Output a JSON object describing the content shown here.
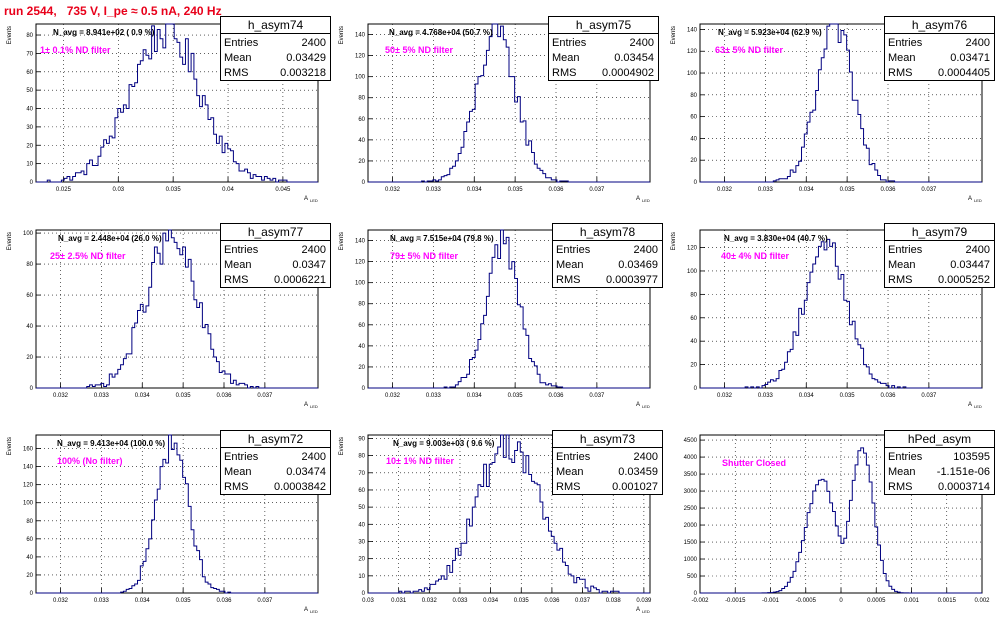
{
  "page_title": "run 2544,   735 V, I_pe ≈ 0.5 nA, 240 Hz",
  "hist_color": "#000080",
  "filter_color": "#ff00ff",
  "title_color": "#e8001a",
  "chart_data": [
    {
      "type": "bar",
      "name": "h_asym74",
      "ylabel": "Events",
      "xlabel": "A",
      "xlabel_sub": "LED",
      "xlim": [
        0.0225,
        0.0482
      ],
      "ylim": [
        0,
        86
      ],
      "xticks": [
        "0.025",
        "0.03",
        "0.035",
        "0.04",
        "0.045"
      ],
      "xtick_values": [
        0.025,
        0.03,
        0.035,
        0.04,
        0.045
      ],
      "yticks": [
        "0",
        "10",
        "20",
        "30",
        "40",
        "50",
        "60",
        "70",
        "80"
      ],
      "ytick_values": [
        0,
        10,
        20,
        30,
        40,
        50,
        60,
        70,
        80
      ],
      "navg_label": "N_avg = 8.941e+02 ( 0.9 %)",
      "filter_label": "1± 0.1% ND filter",
      "stats": {
        "title": "h_asym74",
        "entries_label": "Entries",
        "entries": "2400",
        "mean_label": "Mean",
        "mean": "0.03429",
        "rms_label": "RMS",
        "rms": "0.003218"
      },
      "mean": 0.03429,
      "rms": 0.003218,
      "peak": 82,
      "bins": 100,
      "skew": 0
    },
    {
      "type": "bar",
      "name": "h_asym75",
      "ylabel": "Events",
      "xlabel": "A",
      "xlabel_sub": "LED",
      "xlim": [
        0.0314,
        0.0383
      ],
      "ylim": [
        0,
        150
      ],
      "xticks": [
        "0.032",
        "0.033",
        "0.034",
        "0.035",
        "0.036",
        "0.037"
      ],
      "xtick_values": [
        0.032,
        0.033,
        0.034,
        0.035,
        0.036,
        0.037
      ],
      "yticks": [
        "0",
        "20",
        "40",
        "60",
        "80",
        "100",
        "120",
        "140"
      ],
      "ytick_values": [
        0,
        20,
        40,
        60,
        80,
        100,
        120,
        140
      ],
      "navg_label": "N_avg = 4.768e+04 (50.7 %)",
      "filter_label": "50± 5% ND filter",
      "stats": {
        "title": "h_asym75",
        "entries_label": "Entries",
        "entries": "2400",
        "mean_label": "Mean",
        "mean": "0.03454",
        "rms_label": "RMS",
        "rms": "0.0004902"
      },
      "mean": 0.03454,
      "rms": 0.0004902,
      "peak": 140,
      "bins": 100,
      "skew": 0
    },
    {
      "type": "bar",
      "name": "h_asym76",
      "ylabel": "Events",
      "xlabel": "A",
      "xlabel_sub": "LED",
      "xlim": [
        0.0314,
        0.0383
      ],
      "ylim": [
        0,
        145
      ],
      "xticks": [
        "0.032",
        "0.033",
        "0.034",
        "0.035",
        "0.036",
        "0.037"
      ],
      "xtick_values": [
        0.032,
        0.033,
        0.034,
        0.035,
        0.036,
        0.037
      ],
      "yticks": [
        "0",
        "20",
        "40",
        "60",
        "80",
        "100",
        "120",
        "140"
      ],
      "ytick_values": [
        0,
        20,
        40,
        60,
        80,
        100,
        120,
        140
      ],
      "navg_label": "N_avg = 5.923e+04 (62.9 %)",
      "filter_label": "63± 5% ND filter",
      "stats": {
        "title": "h_asym76",
        "entries_label": "Entries",
        "entries": "2400",
        "mean_label": "Mean",
        "mean": "0.03471",
        "rms_label": "RMS",
        "rms": "0.0004405"
      },
      "mean": 0.03471,
      "rms": 0.0004405,
      "peak": 142,
      "bins": 100,
      "skew": 0
    },
    {
      "type": "bar",
      "name": "h_asym77",
      "ylabel": "Events",
      "xlabel": "A",
      "xlabel_sub": "LED",
      "xlim": [
        0.0314,
        0.0383
      ],
      "ylim": [
        0,
        102
      ],
      "xticks": [
        "0.032",
        "0.033",
        "0.034",
        "0.035",
        "0.036",
        "0.037"
      ],
      "xtick_values": [
        0.032,
        0.033,
        0.034,
        0.035,
        0.036,
        0.037
      ],
      "yticks": [
        "0",
        "20",
        "40",
        "60",
        "80",
        "100"
      ],
      "ytick_values": [
        0,
        20,
        40,
        60,
        80,
        100
      ],
      "navg_label": "N_avg = 2.448e+04 (26.0 %)",
      "filter_label": "25± 2.5% ND filter",
      "stats": {
        "title": "h_asym77",
        "entries_label": "Entries",
        "entries": "2400",
        "mean_label": "Mean",
        "mean": "0.0347",
        "rms_label": "RMS",
        "rms": "0.0006221"
      },
      "mean": 0.0347,
      "rms": 0.0006221,
      "peak": 96,
      "bins": 100,
      "skew": 0
    },
    {
      "type": "bar",
      "name": "h_asym78",
      "ylabel": "Events",
      "xlabel": "A",
      "xlabel_sub": "LED",
      "xlim": [
        0.0314,
        0.0383
      ],
      "ylim": [
        0,
        150
      ],
      "xticks": [
        "0.032",
        "0.033",
        "0.034",
        "0.035",
        "0.036",
        "0.037"
      ],
      "xtick_values": [
        0.032,
        0.033,
        0.034,
        0.035,
        0.036,
        0.037
      ],
      "yticks": [
        "0",
        "20",
        "40",
        "60",
        "80",
        "100",
        "120",
        "140"
      ],
      "ytick_values": [
        0,
        20,
        40,
        60,
        80,
        100,
        120,
        140
      ],
      "navg_label": "N_avg = 7.515e+04 (79.8 %)",
      "filter_label": "79± 5% ND filter",
      "stats": {
        "title": "h_asym78",
        "entries_label": "Entries",
        "entries": "2400",
        "mean_label": "Mean",
        "mean": "0.03469",
        "rms_label": "RMS",
        "rms": "0.0003977"
      },
      "mean": 0.03469,
      "rms": 0.0003977,
      "peak": 140,
      "bins": 100,
      "skew": 0
    },
    {
      "type": "bar",
      "name": "h_asym79",
      "ylabel": "Events",
      "xlabel": "A",
      "xlabel_sub": "LED",
      "xlim": [
        0.0314,
        0.0383
      ],
      "ylim": [
        0,
        135
      ],
      "xticks": [
        "0.032",
        "0.033",
        "0.034",
        "0.035",
        "0.036",
        "0.037"
      ],
      "xtick_values": [
        0.032,
        0.033,
        0.034,
        0.035,
        0.036,
        0.037
      ],
      "yticks": [
        "0",
        "20",
        "40",
        "60",
        "80",
        "100",
        "120"
      ],
      "ytick_values": [
        0,
        20,
        40,
        60,
        80,
        100,
        120
      ],
      "navg_label": "N_avg = 3.830e+04 (40.7 %)",
      "filter_label": "40± 4% ND filter",
      "stats": {
        "title": "h_asym79",
        "entries_label": "Entries",
        "entries": "2400",
        "mean_label": "Mean",
        "mean": "0.03447",
        "rms_label": "RMS",
        "rms": "0.0005252"
      },
      "mean": 0.03447,
      "rms": 0.0005252,
      "peak": 125,
      "bins": 100,
      "skew": 0
    },
    {
      "type": "bar",
      "name": "h_asym72",
      "ylabel": "Events",
      "xlabel": "A",
      "xlabel_sub": "LED",
      "xlim": [
        0.0314,
        0.0383
      ],
      "ylim": [
        0,
        175
      ],
      "xticks": [
        "0.032",
        "0.033",
        "0.034",
        "0.035",
        "0.036",
        "0.037"
      ],
      "xtick_values": [
        0.032,
        0.033,
        0.034,
        0.035,
        0.036,
        0.037
      ],
      "yticks": [
        "0",
        "20",
        "40",
        "60",
        "80",
        "100",
        "120",
        "140",
        "160"
      ],
      "ytick_values": [
        0,
        20,
        40,
        60,
        80,
        100,
        120,
        140,
        160
      ],
      "navg_label": "N_avg = 9.413e+04 (100.0 %)",
      "filter_label": "100% (No filter)",
      "stats": {
        "title": "h_asym72",
        "entries_label": "Entries",
        "entries": "2400",
        "mean_label": "Mean",
        "mean": "0.03474",
        "rms_label": "RMS",
        "rms": "0.0003842"
      },
      "mean": 0.03474,
      "rms": 0.0003842,
      "peak": 168,
      "bins": 100,
      "skew": 0
    },
    {
      "type": "bar",
      "name": "h_asym73",
      "ylabel": "Events",
      "xlabel": "A",
      "xlabel_sub": "LED",
      "xlim": [
        0.03,
        0.0392
      ],
      "ylim": [
        0,
        92
      ],
      "xticks": [
        "0.03",
        "0.031",
        "0.032",
        "0.033",
        "0.034",
        "0.035",
        "0.036",
        "0.037",
        "0.038",
        "0.039"
      ],
      "xtick_values": [
        0.03,
        0.031,
        0.032,
        0.033,
        0.034,
        0.035,
        0.036,
        0.037,
        0.038,
        0.039
      ],
      "yticks": [
        "0",
        "10",
        "20",
        "30",
        "40",
        "50",
        "60",
        "70",
        "80",
        "90"
      ],
      "ytick_values": [
        0,
        10,
        20,
        30,
        40,
        50,
        60,
        70,
        80,
        90
      ],
      "navg_label": "N_avg = 9.003e+03 ( 9.6 %)",
      "filter_label": "10± 1% ND filter",
      "stats": {
        "title": "h_asym73",
        "entries_label": "Entries",
        "entries": "2400",
        "mean_label": "Mean",
        "mean": "0.03459",
        "rms_label": "RMS",
        "rms": "0.001027"
      },
      "mean": 0.03459,
      "rms": 0.001027,
      "peak": 88,
      "bins": 100,
      "skew": 0
    },
    {
      "type": "bar",
      "name": "hPed_asym",
      "ylabel": "",
      "xlabel": "",
      "xlabel_sub": "",
      "xlim": [
        -0.002,
        0.002
      ],
      "ylim": [
        0,
        4650
      ],
      "xticks": [
        "-0.002",
        "-0.0015",
        "-0.001",
        "-0.0005",
        "0",
        "0.0005",
        "0.001",
        "0.0015",
        "0.002"
      ],
      "xtick_values": [
        -0.002,
        -0.0015,
        -0.001,
        -0.0005,
        0,
        0.0005,
        0.001,
        0.0015,
        0.002
      ],
      "yticks": [
        "0",
        "500",
        "1000",
        "1500",
        "2000",
        "2500",
        "3000",
        "3500",
        "4000",
        "4500"
      ],
      "ytick_values": [
        0,
        500,
        1000,
        1500,
        2000,
        2500,
        3000,
        3500,
        4000,
        4500
      ],
      "navg_label": "",
      "filter_label": "Shutter Closed",
      "stats": {
        "title": "hPed_asym",
        "entries_label": "Entries",
        "entries": "103595",
        "mean_label": "Mean",
        "mean": "-1.151e-06",
        "rms_label": "RMS",
        "rms": "0.0003714"
      },
      "mean": -1.15e-06,
      "rms": 0.0003714,
      "peak": 4300,
      "bins": 100,
      "skew": 0,
      "double_peak": true
    }
  ]
}
